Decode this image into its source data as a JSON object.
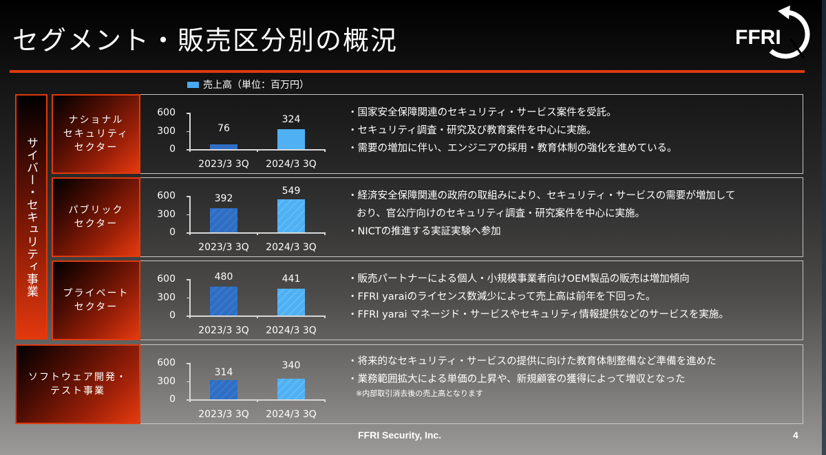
{
  "slide": {
    "title": "セグメント・販売区分別の概況",
    "logo_text": "FFRI",
    "legend_label": "売上高（単位：百万円）",
    "accent_color": "#e03a0e",
    "bar_color_prev": "#2f6ec4",
    "bar_color_cur": "#4fb0f3"
  },
  "segments": {
    "cyber": {
      "label": "サイバー・セキュリティ事業"
    }
  },
  "rows": [
    {
      "sector": "ナショナル\nセキュリティ\nセクター",
      "bullets": [
        "・国家安全保障関連のセキュリティ・サービス案件を受託。",
        "・セキュリティ調査・研究及び教育案件を中心に実施。",
        "・需要の増加に伴い、エンジニアの採用・教育体制の強化を進めている。"
      ]
    },
    {
      "sector": "パブリック\nセクター",
      "bullets": [
        "・経済安全保障関連の政府の取組みにより、セキュリティ・サービスの需要が増加して",
        "おり、官公庁向けのセキュリティ調査・研究案件を中心に実施。",
        "・NICTの推進する実証実験へ参加"
      ]
    },
    {
      "sector": "プライベート\nセクター",
      "bullets": [
        "・販売パートナーによる個人・小規模事業者向けOEM製品の販売は増加傾向",
        "・FFRI yaraiのライセンス数減少によって売上高は前年を下回った。",
        "・FFRI yarai マネージド・サービスやセキュリティ情報提供などのサービスを実施。"
      ]
    },
    {
      "sector": "ソフトウェア開発・\nテスト事業",
      "bullets": [
        "・将来的なセキュリティ・サービスの提供に向けた教育体制整備など準備を進めた",
        "・業務範囲拡大による単価の上昇や、新規顧客の獲得によって増収となった"
      ],
      "note": "※内部取引消去後の売上高となります"
    }
  ],
  "footer": {
    "company": "FFRI Security, Inc.",
    "page": "4"
  },
  "chart_data": [
    {
      "type": "bar",
      "title": "ナショナルセキュリティセクター",
      "categories": [
        "2023/3 3Q",
        "2024/3 3Q"
      ],
      "values": [
        76,
        324
      ],
      "ylabel": "売上高（単位：百万円）",
      "yticks": [
        "0",
        "300",
        "600"
      ],
      "ylim": [
        0,
        600
      ],
      "grid": false,
      "legend": "売上高（単位：百万円）",
      "value_labels": [
        "76",
        "324"
      ]
    },
    {
      "type": "bar",
      "title": "パブリックセクター",
      "categories": [
        "2023/3 3Q",
        "2024/3 3Q"
      ],
      "values": [
        392,
        549
      ],
      "ylabel": "売上高（単位：百万円）",
      "yticks": [
        "0",
        "300",
        "600"
      ],
      "ylim": [
        0,
        600
      ],
      "grid": false,
      "value_labels": [
        "392",
        "549"
      ]
    },
    {
      "type": "bar",
      "title": "プライベートセクター",
      "categories": [
        "2023/3 3Q",
        "2024/3 3Q"
      ],
      "values": [
        480,
        441
      ],
      "ylabel": "売上高（単位：百万円）",
      "yticks": [
        "0",
        "300",
        "600"
      ],
      "ylim": [
        0,
        600
      ],
      "grid": false,
      "value_labels": [
        "480",
        "441"
      ]
    },
    {
      "type": "bar",
      "title": "ソフトウェア開発・テスト事業",
      "categories": [
        "2023/3 3Q",
        "2024/3 3Q"
      ],
      "values": [
        314,
        340
      ],
      "ylabel": "売上高（単位：百万円）",
      "yticks": [
        "0",
        "300",
        "600"
      ],
      "ylim": [
        0,
        600
      ],
      "grid": false,
      "value_labels": [
        "314",
        "340"
      ]
    }
  ]
}
